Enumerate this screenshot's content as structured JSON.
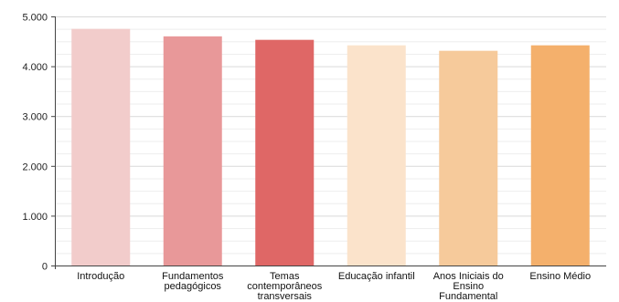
{
  "chart_data": {
    "type": "bar",
    "title": "",
    "xlabel": "",
    "ylabel": "",
    "categories": [
      [
        "Introdução"
      ],
      [
        "Fundamentos",
        "pedagógicos"
      ],
      [
        "Temas",
        "contemporâneos",
        "transversais"
      ],
      [
        "Educação infantil"
      ],
      [
        "Anos Iniciais do",
        "Ensino",
        "Fundamental"
      ],
      [
        "Ensino Médio"
      ]
    ],
    "values": [
      4750,
      4600,
      4530,
      4420,
      4310,
      4420
    ],
    "colors": [
      "#f2cccb",
      "#e89899",
      "#df6766",
      "#fbe3cb",
      "#f6ca9b",
      "#f4b06c"
    ],
    "ylim": [
      0,
      5000
    ],
    "yticks": [
      0,
      1000,
      2000,
      3000,
      4000,
      5000
    ],
    "ytick_labels": [
      "0",
      "1.000",
      "2.000",
      "3.000",
      "4.000",
      "5.000"
    ],
    "grid": true,
    "legend": "none"
  }
}
